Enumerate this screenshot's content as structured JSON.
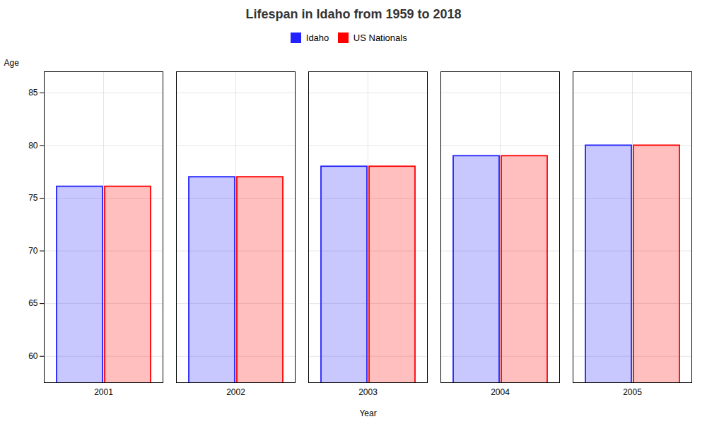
{
  "chart_data": {
    "type": "bar",
    "title": "Lifespan in Idaho from 1959 to 2018",
    "xlabel": "Year",
    "ylabel": "Age",
    "categories": [
      "2001",
      "2002",
      "2003",
      "2004",
      "2005"
    ],
    "series": [
      {
        "name": "Idaho",
        "color": "#2222ff",
        "values": [
          76.1,
          77.0,
          78.0,
          79.0,
          80.0
        ]
      },
      {
        "name": "US Nationals",
        "color": "#ff0000",
        "values": [
          76.1,
          77.0,
          78.0,
          79.0,
          80.0
        ]
      }
    ],
    "ylim": [
      57.5,
      87
    ],
    "yticks": [
      60,
      65,
      70,
      75,
      80,
      85
    ],
    "grid": true,
    "legend": "top"
  }
}
